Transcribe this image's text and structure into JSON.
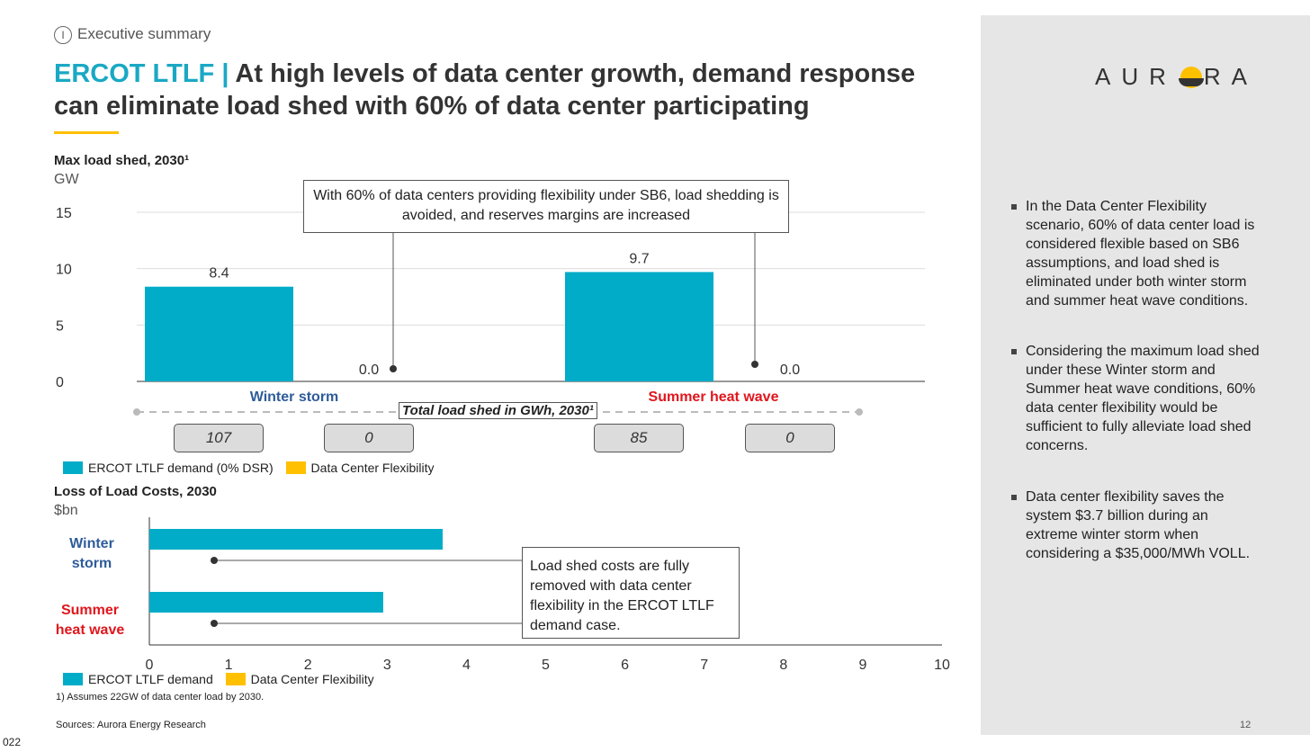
{
  "header": {
    "section_num": "I",
    "section": "Executive summary",
    "title_prefix": "ERCOT LTLF |",
    "title_line1": " At high levels of data center growth, demand response",
    "title_line2": "can eliminate load shed with 60% of data center participating"
  },
  "logo": {
    "text": "AURORA"
  },
  "colors": {
    "teal": "#00acc8",
    "yellow": "#ffc000",
    "blue_label": "#2e5c9a",
    "red_label": "#e0161d",
    "accent": "#1aa8c4"
  },
  "chart_data": [
    {
      "type": "bar",
      "title": "Max load shed, 2030¹",
      "ylabel": "GW",
      "ylim": [
        0,
        15
      ],
      "yticks": [
        0,
        5,
        10,
        15
      ],
      "categories": [
        "Winter storm",
        "Summer heat wave"
      ],
      "series": [
        {
          "name": "ERCOT LTLF demand (0% DSR)",
          "values": [
            8.4,
            9.7
          ]
        },
        {
          "name": "Data Center Flexibility",
          "values": [
            0.0,
            0.0
          ]
        }
      ],
      "data_labels": [
        [
          "8.4",
          "0.0"
        ],
        [
          "9.7",
          "0.0"
        ]
      ],
      "annotation": "With 60% of data centers providing flexibility under SB6, load shedding is avoided, and reserves margins are increased",
      "total_label": "Total load shed in GWh, 2030¹",
      "totals": [
        [
          "107",
          "0"
        ],
        [
          "85",
          "0"
        ]
      ]
    },
    {
      "type": "bar",
      "orientation": "horizontal",
      "title": "Loss of Load Costs, 2030",
      "xlabel": "$bn",
      "xlim": [
        0,
        10
      ],
      "xticks": [
        0,
        1,
        2,
        3,
        4,
        5,
        6,
        7,
        8,
        9,
        10
      ],
      "categories": [
        "Winter storm",
        "Summer heat wave"
      ],
      "series": [
        {
          "name": "ERCOT LTLF demand",
          "values": [
            3.7,
            2.95
          ]
        },
        {
          "name": "Data Center Flexibility",
          "values": [
            0,
            0
          ]
        }
      ],
      "annotation": "Load shed costs are fully removed with data center flexibility in the ERCOT LTLF demand case."
    }
  ],
  "footnote": "1) Assumes 22GW of data center load by 2030.",
  "sources": "Sources: Aurora Energy Research",
  "page": "12",
  "corner": "022",
  "bullets": [
    "In the Data Center Flexibility scenario, 60% of data center load is considered flexible based on SB6 assumptions, and load shed is eliminated under both winter storm and summer heat wave conditions.",
    "Considering the maximum load shed under these Winter storm and Summer heat wave conditions, 60% data center flexibility would be sufficient to fully alleviate load shed concerns.",
    "Data center flexibility saves the system $3.7 billion during an extreme winter storm when considering a $35,000/MWh VOLL."
  ]
}
